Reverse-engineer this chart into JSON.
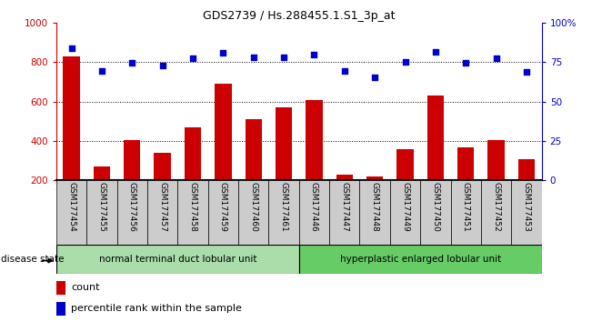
{
  "title": "GDS2739 / Hs.288455.1.S1_3p_at",
  "categories": [
    "GSM177454",
    "GSM177455",
    "GSM177456",
    "GSM177457",
    "GSM177458",
    "GSM177459",
    "GSM177460",
    "GSM177461",
    "GSM177446",
    "GSM177447",
    "GSM177448",
    "GSM177449",
    "GSM177450",
    "GSM177451",
    "GSM177452",
    "GSM177453"
  ],
  "bar_values": [
    830,
    268,
    405,
    338,
    470,
    690,
    510,
    570,
    607,
    228,
    218,
    358,
    632,
    368,
    405,
    308
  ],
  "scatter_values": [
    870,
    755,
    795,
    783,
    820,
    848,
    822,
    822,
    838,
    755,
    720,
    800,
    850,
    798,
    820,
    748
  ],
  "group1_label": "normal terminal duct lobular unit",
  "group2_label": "hyperplastic enlarged lobular unit",
  "group1_count": 8,
  "group2_count": 8,
  "bar_color": "#cc0000",
  "scatter_color": "#0000cc",
  "ylim_left": [
    200,
    1000
  ],
  "ylim_right": [
    0,
    100
  ],
  "yticks_left": [
    200,
    400,
    600,
    800,
    1000
  ],
  "yticks_right": [
    0,
    25,
    50,
    75,
    100
  ],
  "grid_values": [
    400,
    600,
    800
  ],
  "legend_count": "count",
  "legend_pct": "percentile rank within the sample",
  "disease_state_label": "disease state",
  "group1_color": "#aaddaa",
  "group2_color": "#66cc66",
  "bar_bottom": 200,
  "xlabel_bg": "#cccccc"
}
